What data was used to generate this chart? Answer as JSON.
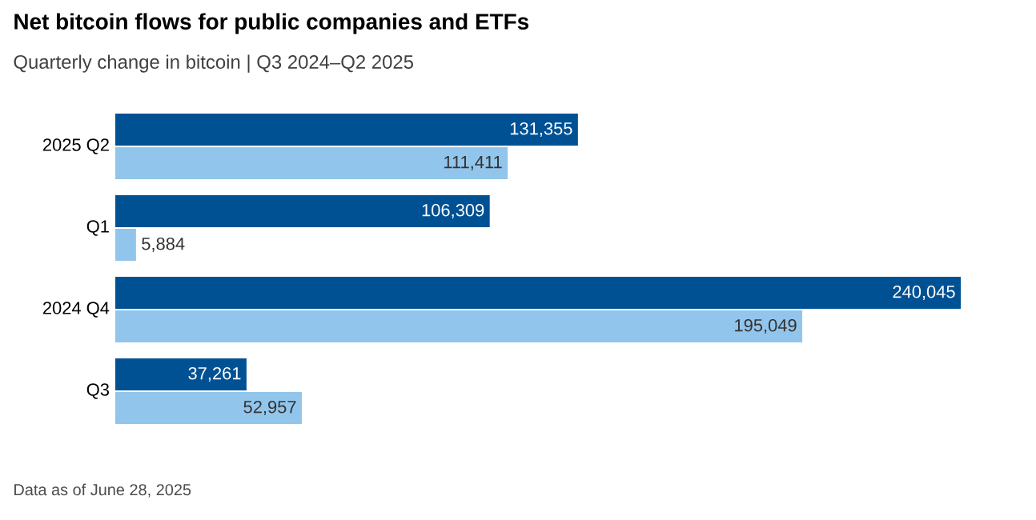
{
  "chart_data": {
    "type": "bar",
    "orientation": "horizontal",
    "title": "Net bitcoin flows for public companies and ETFs",
    "subtitle": "Quarterly change in bitcoin | Q3 2024–Q2 2025",
    "categories": [
      "2025 Q2",
      "Q1",
      "2024 Q4",
      "Q3"
    ],
    "series": [
      {
        "color": "#005194",
        "values": [
          131355,
          106309,
          240045,
          37261
        ],
        "value_labels": [
          "131,355",
          "106,309",
          "240,045",
          "37,261"
        ]
      },
      {
        "color": "#92c5ec",
        "values": [
          111411,
          5884,
          195049,
          52957
        ],
        "value_labels": [
          "111,411",
          "5,884",
          "195,049",
          "52,957"
        ]
      }
    ],
    "annotations": [
      "Data as of June 28, 2025"
    ]
  }
}
